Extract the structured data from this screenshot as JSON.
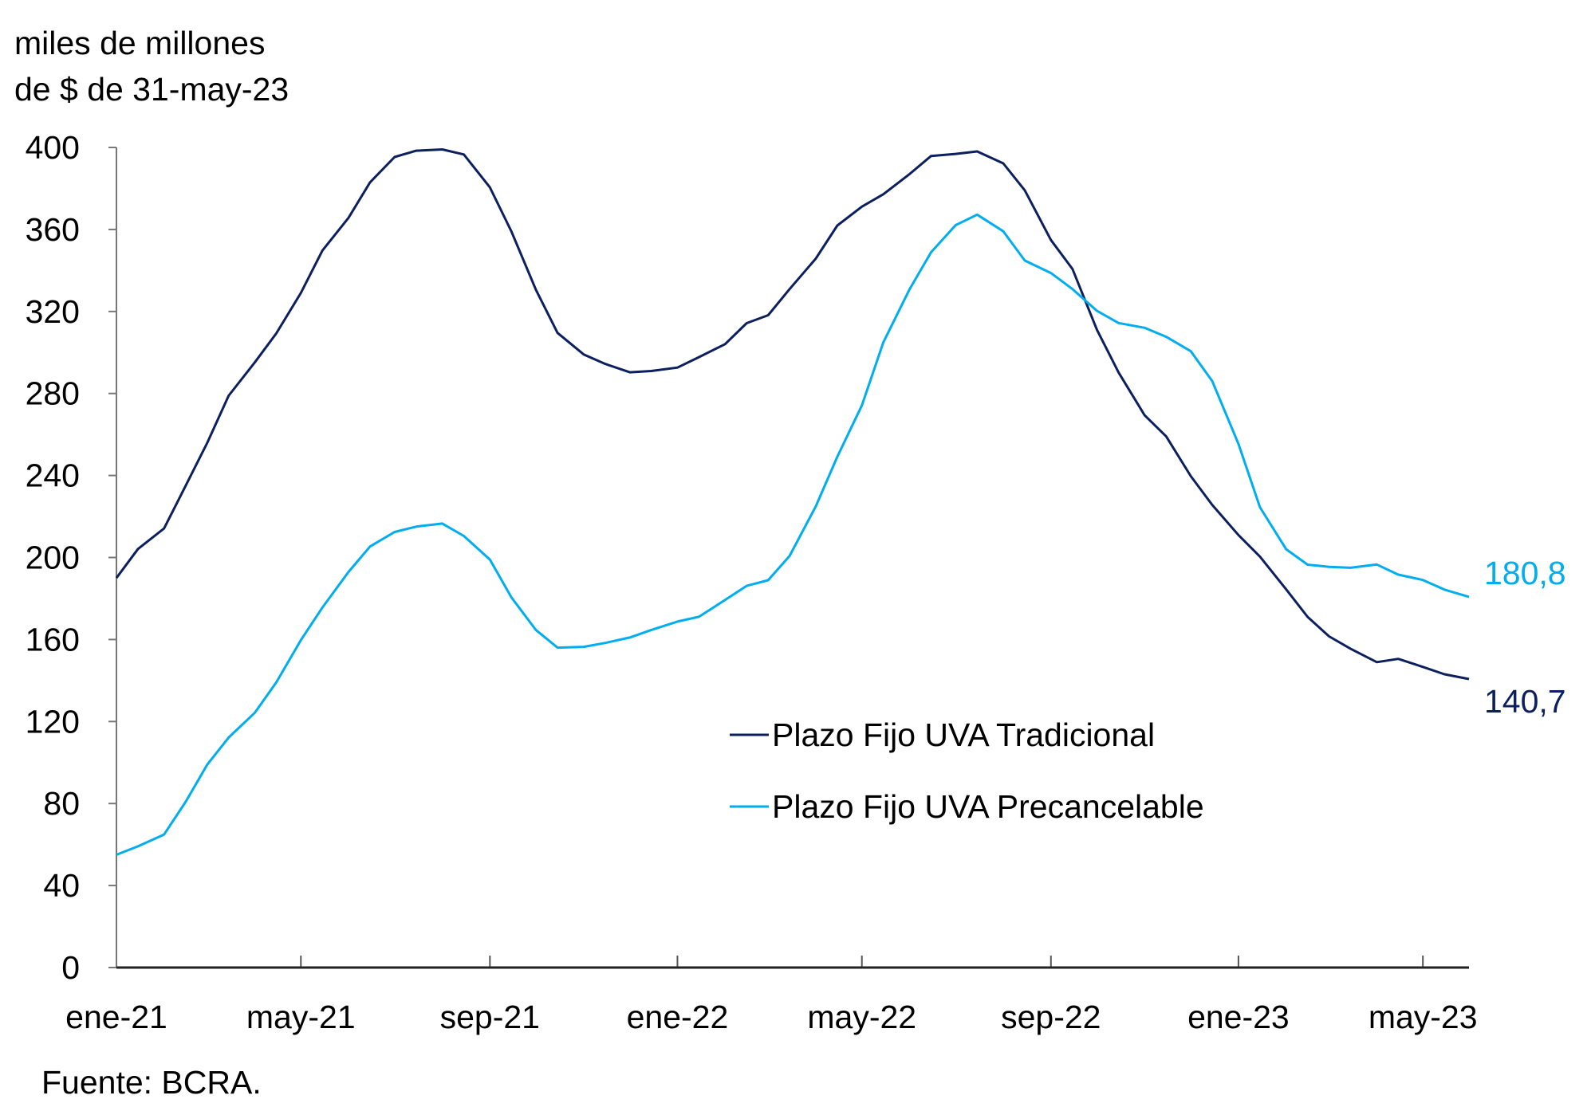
{
  "chart_data": {
    "type": "line",
    "ylabel_lines": [
      "miles de millones",
      "de $ de 31-may-23"
    ],
    "source": "Fuente: BCRA.",
    "ylim": [
      0,
      400
    ],
    "yticks": [
      0,
      40,
      80,
      120,
      160,
      200,
      240,
      280,
      320,
      360,
      400
    ],
    "xlim": [
      "2021-01-01",
      "2023-05-31"
    ],
    "xticks": [
      {
        "date": "2021-01-01",
        "label": "ene-21"
      },
      {
        "date": "2021-05-01",
        "label": "may-21"
      },
      {
        "date": "2021-09-01",
        "label": "sep-21"
      },
      {
        "date": "2022-01-01",
        "label": "ene-22"
      },
      {
        "date": "2022-05-01",
        "label": "may-22"
      },
      {
        "date": "2022-09-01",
        "label": "sep-22"
      },
      {
        "date": "2023-01-01",
        "label": "ene-23"
      },
      {
        "date": "2023-05-01",
        "label": "may-23"
      }
    ],
    "grid": false,
    "legend_placement": "center-right",
    "series": [
      {
        "name": "Plazo Fijo UVA Tradicional",
        "color": "#0c1f5e",
        "end_label": "140,7",
        "x": [
          "2021-01-01",
          "2021-01-15",
          "2021-02-01",
          "2021-02-15",
          "2021-03-01",
          "2021-03-15",
          "2021-04-01",
          "2021-04-15",
          "2021-05-01",
          "2021-05-15",
          "2021-06-01",
          "2021-06-15",
          "2021-07-01",
          "2021-07-15",
          "2021-08-01",
          "2021-08-15",
          "2021-09-01",
          "2021-09-15",
          "2021-10-01",
          "2021-10-15",
          "2021-11-01",
          "2021-11-15",
          "2021-12-01",
          "2021-12-15",
          "2022-01-01",
          "2022-01-15",
          "2022-02-01",
          "2022-02-15",
          "2022-03-01",
          "2022-03-15",
          "2022-04-01",
          "2022-04-15",
          "2022-05-01",
          "2022-05-15",
          "2022-06-01",
          "2022-06-15",
          "2022-07-01",
          "2022-07-15",
          "2022-08-01",
          "2022-08-15",
          "2022-09-01",
          "2022-09-15",
          "2022-10-01",
          "2022-10-15",
          "2022-11-01",
          "2022-11-15",
          "2022-12-01",
          "2022-12-15",
          "2023-01-01",
          "2023-01-15",
          "2023-02-01",
          "2023-02-15",
          "2023-03-01",
          "2023-03-15",
          "2023-04-01",
          "2023-04-15",
          "2023-05-01",
          "2023-05-15",
          "2023-05-31"
        ],
        "values": [
          190,
          205,
          215,
          235,
          255,
          278,
          295,
          310,
          330,
          350,
          365,
          382,
          395,
          399,
          400,
          397,
          380,
          358,
          330,
          310,
          300,
          295,
          290,
          290,
          292,
          298,
          305,
          315,
          318,
          330,
          345,
          362,
          372,
          378,
          387,
          395,
          396,
          398,
          393,
          380,
          355,
          340,
          310,
          290,
          270,
          260,
          240,
          225,
          210,
          200,
          185,
          172,
          162,
          155,
          148,
          150,
          147,
          144,
          140.7
        ]
      },
      {
        "name": "Plazo Fijo UVA Precancelable",
        "color": "#00aeef",
        "end_label": "180,8",
        "x": [
          "2021-01-01",
          "2021-01-15",
          "2021-02-01",
          "2021-02-15",
          "2021-03-01",
          "2021-03-15",
          "2021-04-01",
          "2021-04-15",
          "2021-05-01",
          "2021-05-15",
          "2021-06-01",
          "2021-06-15",
          "2021-07-01",
          "2021-07-15",
          "2021-08-01",
          "2021-08-15",
          "2021-09-01",
          "2021-09-15",
          "2021-10-01",
          "2021-10-15",
          "2021-11-01",
          "2021-11-15",
          "2021-12-01",
          "2021-12-15",
          "2022-01-01",
          "2022-01-15",
          "2022-02-01",
          "2022-02-15",
          "2022-03-01",
          "2022-03-15",
          "2022-04-01",
          "2022-04-15",
          "2022-05-01",
          "2022-05-15",
          "2022-06-01",
          "2022-06-15",
          "2022-07-01",
          "2022-07-15",
          "2022-08-01",
          "2022-08-15",
          "2022-09-01",
          "2022-09-15",
          "2022-10-01",
          "2022-10-15",
          "2022-11-01",
          "2022-11-15",
          "2022-12-01",
          "2022-12-15",
          "2023-01-01",
          "2023-01-15",
          "2023-02-01",
          "2023-02-15",
          "2023-03-01",
          "2023-03-15",
          "2023-04-01",
          "2023-04-15",
          "2023-05-01",
          "2023-05-15",
          "2023-05-31"
        ],
        "values": [
          55,
          60,
          65,
          80,
          98,
          112,
          125,
          140,
          160,
          175,
          192,
          205,
          213,
          216,
          217,
          210,
          198,
          180,
          165,
          157,
          157,
          158,
          160,
          164,
          169,
          172,
          180,
          186,
          188,
          200,
          225,
          250,
          275,
          305,
          330,
          348,
          362,
          368,
          360,
          345,
          338,
          330,
          320,
          315,
          313,
          308,
          300,
          285,
          255,
          225,
          205,
          197,
          195,
          194,
          196,
          192,
          190,
          185,
          180.8
        ]
      }
    ]
  }
}
